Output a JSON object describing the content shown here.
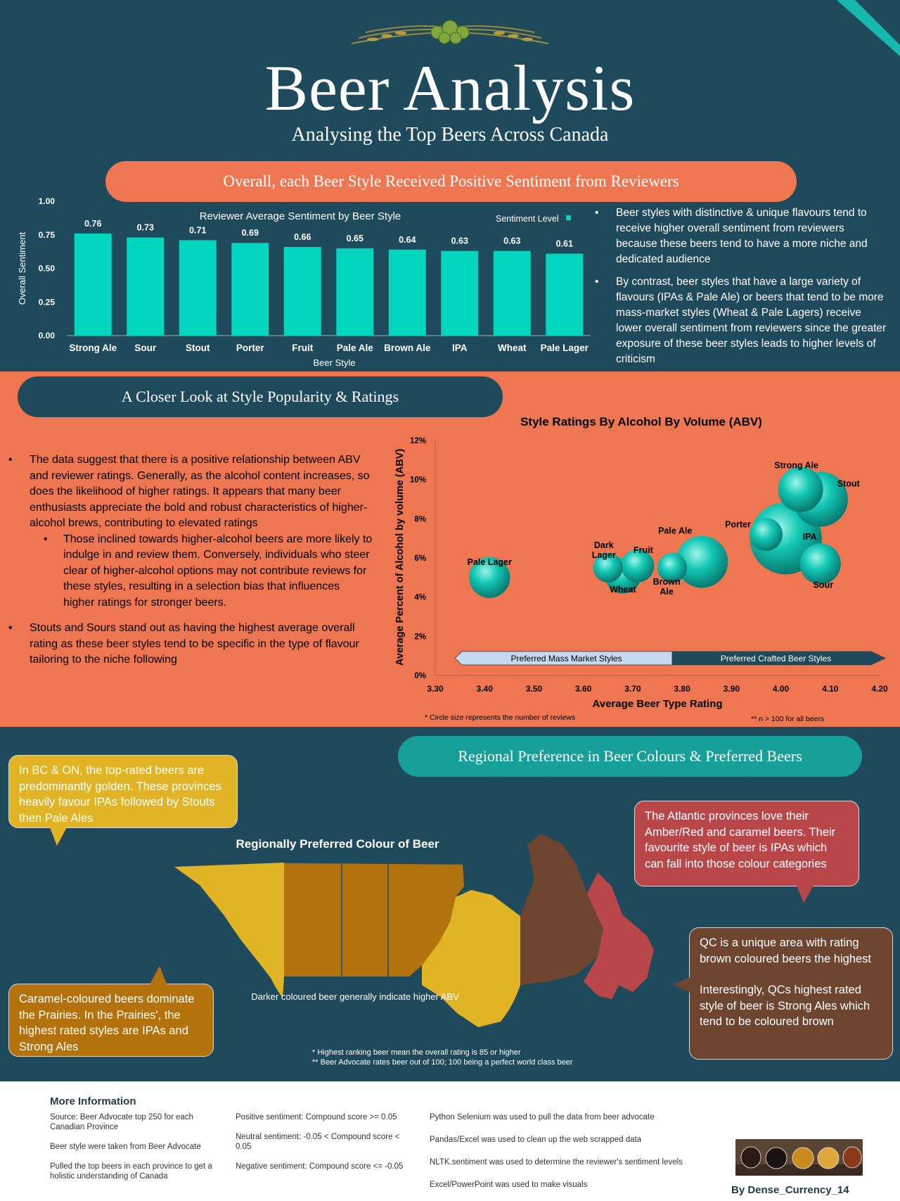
{
  "header": {
    "title": "Beer Analysis",
    "subtitle": "Analysing the Top Beers Across Canada"
  },
  "section1": {
    "heading": "Overall, each Beer Style Received Positive Sentiment from Reviewers",
    "bullets": [
      "Beer styles with distinctive & unique flavours tend to receive higher overall sentiment from reviewers because these beers tend to have a more niche and dedicated audience",
      "By contrast, beer styles that have a large variety of flavours (IPAs & Pale Ale) or beers that tend to be more mass-market styles (Wheat & Pale Lagers) receive lower overall sentiment from reviewers since the greater exposure of these beer styles leads to higher levels of criticism"
    ]
  },
  "section2": {
    "heading": "A Closer Look at Style Popularity & Ratings",
    "bullet1": "The data suggest that there is a positive relationship between ABV and reviewer ratings. Generally, as the alcohol content increases, so does the likelihood of higher ratings. It appears that many beer enthusiasts appreciate the bold and robust characteristics of higher-alcohol brews, contributing to elevated ratings",
    "sub_bullet": "Those inclined towards higher-alcohol beers are more likely to indulge in and review them. Conversely, individuals who steer clear of higher-alcohol options may not contribute reviews for these styles, resulting in a selection bias that influences higher ratings for stronger beers.",
    "bullet2": "Stouts and Sours stand out as having the highest average overall rating as these beer styles tend to be specific in the type of flavour tailoring to the niche following",
    "footnote_left": "* Circle size represents the number of reviews",
    "footnote_right": "** n > 100 for all beers"
  },
  "section3": {
    "heading": "Regional Preference in Beer Colours & Preferred Beers",
    "map_title": "Regionally Preferred Colour of Beer",
    "map_caption": "Darker coloured beer generally indicate higher ABV",
    "note1": "* Highest ranking beer mean the overall rating is 85 or higher",
    "note2": "** Beer Advocate rates beer out of 100; 100 being a perfect world class beer",
    "callout_bc_on": "In BC & ON, the top-rated beers are predominantly golden. These provinces heavily favour IPAs followed by Stouts then Pale Ales",
    "callout_prairies": "Caramel-coloured beers dominate the Prairies. In the Prairies', the highest rated styles are IPAs and Strong Ales",
    "callout_atlantic": "The Atlantic provinces love their Amber/Red and caramel beers. Their favourite style of beer is IPAs which can fall into those colour categories",
    "callout_qc_1": "QC is a unique area with rating brown coloured beers the highest",
    "callout_qc_2": "Interestingly, QCs highest rated style of beer is Strong Ales which tend to be coloured brown",
    "colors": {
      "golden": "#e0b424",
      "caramel": "#b3720b",
      "brown": "#6e4630",
      "amber_red": "#b9474a"
    }
  },
  "footer": {
    "title": "More Information",
    "col1": [
      "Source: Beer Advocate top 250 for each Canadian Province",
      "Beer style were taken from Beer Advocate",
      "Pulled the top beers in each province to get a holistic understanding of Canada"
    ],
    "col2": [
      "Positive sentiment: Compound score >= 0.05",
      "Neutral sentiment: -0.05 < Compound score < 0.05",
      "Negative sentiment: Compound score <= -0.05"
    ],
    "col3": [
      "Python Selenium was used to pull the data from beer advocate",
      "Pandas/Excel was used to clean up the web scrapped data",
      "NLTK.sentiment was used to determine the reviewer's sentiment levels",
      "Excel/PowerPoint was used to make visuals"
    ],
    "byline": "By Dense_Currency_14"
  },
  "chart_data": [
    {
      "type": "bar",
      "title": "Reviewer Average Sentiment by Beer Style",
      "xlabel": "Beer Style",
      "ylabel": "Overall Sentiment",
      "legend": "Sentiment Level",
      "legend_position": "top-right",
      "ylim": [
        0,
        1
      ],
      "yticks": [
        "0.00",
        "0.25",
        "0.50",
        "0.75",
        "1.00"
      ],
      "categories": [
        "Strong Ale",
        "Sour",
        "Stout",
        "Porter",
        "Fruit",
        "Pale Ale",
        "Brown Ale",
        "IPA",
        "Wheat",
        "Pale Lager"
      ],
      "values": [
        0.76,
        0.73,
        0.71,
        0.69,
        0.66,
        0.65,
        0.64,
        0.63,
        0.63,
        0.61
      ],
      "color": "#00d5bd"
    },
    {
      "type": "scatter",
      "title": "Style Ratings By Alcohol By Volume (ABV)",
      "xlabel": "Average Beer Type Rating",
      "ylabel": "Average Percent of Alcohol by volume (ABV)",
      "xlim": [
        3.3,
        4.2
      ],
      "ylim": [
        0,
        12
      ],
      "xticks": [
        "3.30",
        "3.40",
        "3.50",
        "3.60",
        "3.70",
        "3.80",
        "3.90",
        "4.00",
        "4.10",
        "4.20"
      ],
      "yticks": [
        "0%",
        "2%",
        "4%",
        "6%",
        "8%",
        "10%",
        "12%"
      ],
      "size_meaning": "number of reviews",
      "points": [
        {
          "name": "Pale Lager",
          "x": 3.41,
          "y": 5.0,
          "size": 3
        },
        {
          "name": "Dark Lager",
          "x": 3.65,
          "y": 5.5,
          "size": 1
        },
        {
          "name": "Wheat",
          "x": 3.68,
          "y": 5.1,
          "size": 2
        },
        {
          "name": "Fruit",
          "x": 3.71,
          "y": 5.6,
          "size": 1.5
        },
        {
          "name": "Brown Ale",
          "x": 3.78,
          "y": 5.5,
          "size": 1
        },
        {
          "name": "Pale Ale",
          "x": 3.84,
          "y": 5.8,
          "size": 6
        },
        {
          "name": "Porter",
          "x": 3.97,
          "y": 7.2,
          "size": 1.5
        },
        {
          "name": "IPA",
          "x": 4.01,
          "y": 7.0,
          "size": 14
        },
        {
          "name": "Strong Ale",
          "x": 4.04,
          "y": 9.5,
          "size": 4
        },
        {
          "name": "Stout",
          "x": 4.08,
          "y": 9.0,
          "size": 7
        },
        {
          "name": "Sour",
          "x": 4.08,
          "y": 5.7,
          "size": 3
        }
      ],
      "bands": [
        {
          "label": "Preferred Mass Market Styles",
          "from": 3.34,
          "to": 3.78,
          "color": "#c5d9f1"
        },
        {
          "label": "Preferred Crafted Beer Styles",
          "from": 3.78,
          "to": 4.2,
          "color": "#1f4a5c"
        }
      ]
    }
  ]
}
